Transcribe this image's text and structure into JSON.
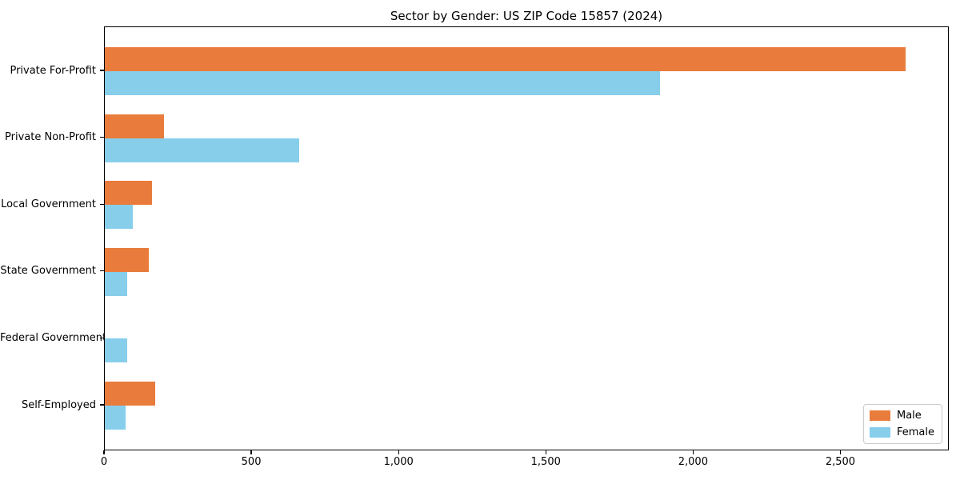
{
  "chart_data": {
    "type": "bar",
    "orientation": "horizontal",
    "title": "Sector by Gender: US ZIP Code 15857 (2024)",
    "categories": [
      "Private For-Profit",
      "Private Non-Profit",
      "Local Government",
      "State Government",
      "Federal Government",
      "Self-Employed"
    ],
    "series": [
      {
        "name": "Male",
        "color": "#E97C3C",
        "values": [
          2720,
          200,
          160,
          150,
          0,
          170
        ]
      },
      {
        "name": "Female",
        "color": "#87CEEB",
        "values": [
          1885,
          660,
          95,
          77,
          75,
          70
        ]
      }
    ],
    "x_ticks": [
      {
        "value": 0,
        "label": "0"
      },
      {
        "value": 500,
        "label": "500"
      },
      {
        "value": 1000,
        "label": "1,000"
      },
      {
        "value": 1500,
        "label": "1,500"
      },
      {
        "value": 2000,
        "label": "2,000"
      },
      {
        "value": 2500,
        "label": "2,500"
      }
    ],
    "xlim": [
      0,
      2860
    ],
    "xlabel": "",
    "ylabel": "",
    "grid": false,
    "legend_position": "lower right",
    "frame_color": "#000000",
    "background_color": "#ffffff"
  }
}
